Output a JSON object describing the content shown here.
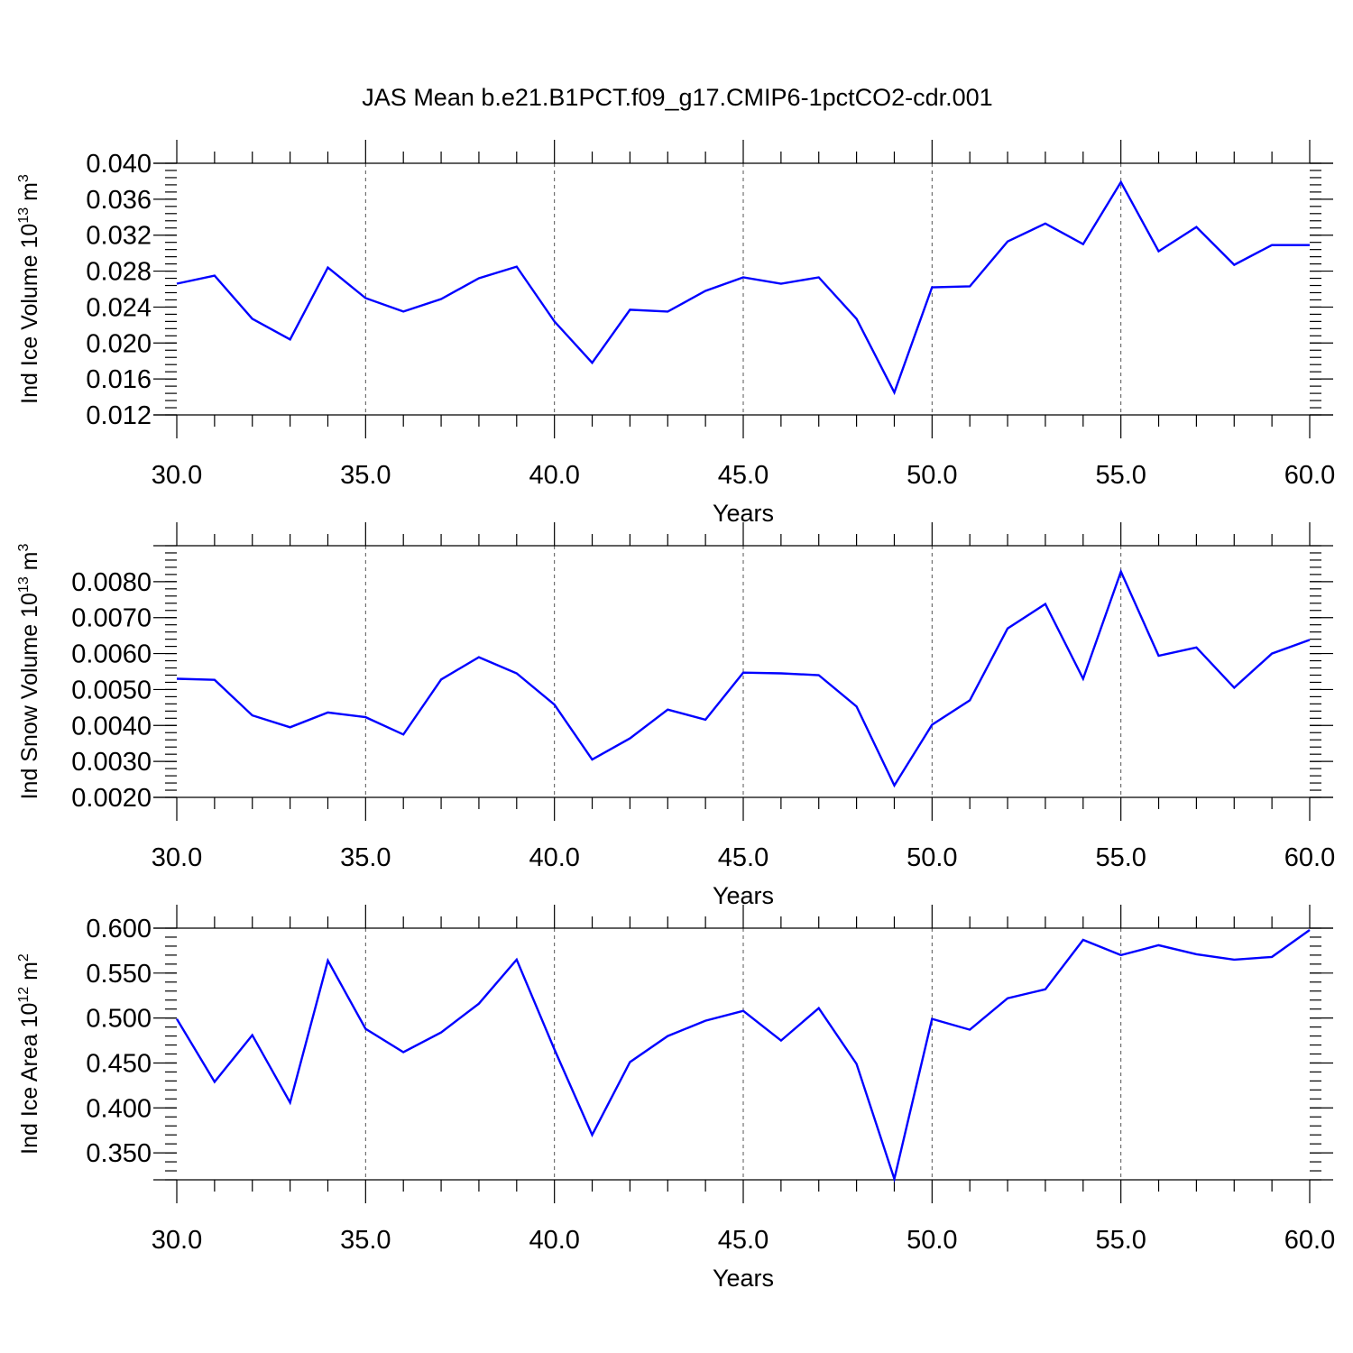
{
  "title": "JAS Mean b.e21.B1PCT.f09_g17.CMIP6-1pctCO2-cdr.001",
  "chart_data": [
    {
      "type": "line",
      "ylabel": "Ind Ice Volume 10",
      "ylabel_exp": "13",
      "ylabel_unit": " m",
      "ylabel_unit_exp": "3",
      "xlabel": "Years",
      "xlim": [
        30,
        60
      ],
      "ylim": [
        0.012,
        0.04
      ],
      "yticks": [
        "0.012",
        "0.016",
        "0.020",
        "0.024",
        "0.028",
        "0.032",
        "0.036",
        "0.040"
      ],
      "xticks": [
        "30.0",
        "35.0",
        "40.0",
        "45.0",
        "50.0",
        "55.0",
        "60.0"
      ],
      "grid_x": true,
      "color": "#0000ff",
      "x": [
        30,
        31,
        32,
        33,
        34,
        35,
        36,
        37,
        38,
        39,
        40,
        41,
        42,
        43,
        44,
        45,
        46,
        47,
        48,
        49,
        50,
        51,
        52,
        53,
        54,
        55,
        56,
        57,
        58,
        59,
        60
      ],
      "values": [
        0.0266,
        0.0275,
        0.0227,
        0.0204,
        0.0284,
        0.025,
        0.0235,
        0.0249,
        0.0272,
        0.0285,
        0.0224,
        0.0178,
        0.0237,
        0.0235,
        0.0258,
        0.0273,
        0.0266,
        0.0273,
        0.0227,
        0.0145,
        0.0262,
        0.0263,
        0.0313,
        0.0333,
        0.031,
        0.0379,
        0.0302,
        0.0329,
        0.0287,
        0.0309,
        0.0309
      ]
    },
    {
      "type": "line",
      "ylabel": "Ind Snow Volume 10",
      "ylabel_exp": "13",
      "ylabel_unit": " m",
      "ylabel_unit_exp": "3",
      "xlabel": "Years",
      "xlim": [
        30,
        60
      ],
      "ylim": [
        0.002,
        0.009
      ],
      "yticks": [
        "0.0020",
        "0.0030",
        "0.0040",
        "0.0050",
        "0.0060",
        "0.0070",
        "0.0080"
      ],
      "xticks": [
        "30.0",
        "35.0",
        "40.0",
        "45.0",
        "50.0",
        "55.0",
        "60.0"
      ],
      "grid_x": true,
      "color": "#0000ff",
      "x": [
        30,
        31,
        32,
        33,
        34,
        35,
        36,
        37,
        38,
        39,
        40,
        41,
        42,
        43,
        44,
        45,
        46,
        47,
        48,
        49,
        50,
        51,
        52,
        53,
        54,
        55,
        56,
        57,
        58,
        59,
        60
      ],
      "values": [
        0.0053,
        0.00527,
        0.00428,
        0.00395,
        0.00436,
        0.00423,
        0.00375,
        0.00528,
        0.0059,
        0.00545,
        0.00458,
        0.00305,
        0.00364,
        0.00444,
        0.00416,
        0.00547,
        0.00545,
        0.0054,
        0.00453,
        0.00233,
        0.00402,
        0.0047,
        0.0067,
        0.00738,
        0.0053,
        0.00828,
        0.00594,
        0.00617,
        0.00505,
        0.006,
        0.00638
      ]
    },
    {
      "type": "line",
      "ylabel": "Ind Ice Area 10",
      "ylabel_exp": "12",
      "ylabel_unit": " m",
      "ylabel_unit_exp": "2",
      "xlabel": "Years",
      "xlim": [
        30,
        60
      ],
      "ylim": [
        0.32,
        0.6
      ],
      "yticks": [
        "0.350",
        "0.400",
        "0.450",
        "0.500",
        "0.550",
        "0.600"
      ],
      "xticks": [
        "30.0",
        "35.0",
        "40.0",
        "45.0",
        "50.0",
        "55.0",
        "60.0"
      ],
      "grid_x": true,
      "color": "#0000ff",
      "x": [
        30,
        31,
        32,
        33,
        34,
        35,
        36,
        37,
        38,
        39,
        40,
        41,
        42,
        43,
        44,
        45,
        46,
        47,
        48,
        49,
        50,
        51,
        52,
        53,
        54,
        55,
        56,
        57,
        58,
        59,
        60
      ],
      "values": [
        0.499,
        0.429,
        0.481,
        0.406,
        0.564,
        0.488,
        0.462,
        0.484,
        0.516,
        0.565,
        0.465,
        0.37,
        0.451,
        0.48,
        0.497,
        0.508,
        0.475,
        0.511,
        0.449,
        0.321,
        0.499,
        0.487,
        0.522,
        0.532,
        0.587,
        0.57,
        0.581,
        0.571,
        0.565,
        0.568,
        0.598
      ]
    }
  ]
}
